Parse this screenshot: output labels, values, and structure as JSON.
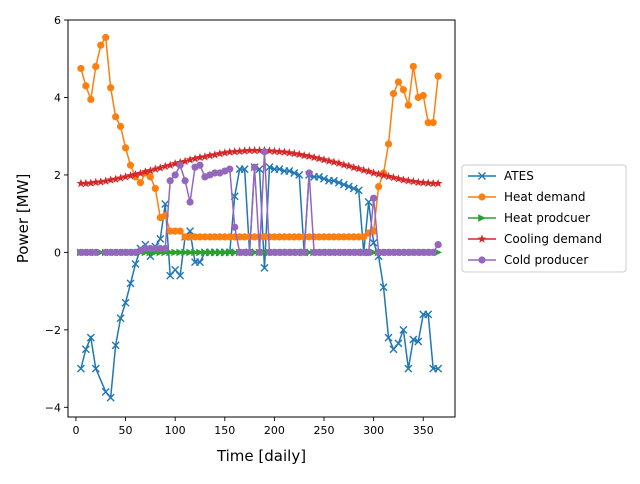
{
  "chart_data": {
    "type": "line",
    "title": "",
    "xlabel": "Time [daily]",
    "ylabel": "Power [MW]",
    "xlim": [
      -8,
      382
    ],
    "ylim": [
      -4.25,
      6.0
    ],
    "xticks": [
      0,
      50,
      100,
      150,
      200,
      250,
      300,
      350
    ],
    "xtick_labels": [
      "0",
      "50",
      "100",
      "150",
      "200",
      "250",
      "300",
      "350"
    ],
    "yticks": [
      -4,
      -2,
      0,
      2,
      4,
      6
    ],
    "ytick_labels": [
      "−4",
      "−2",
      "0",
      "2",
      "4",
      "6"
    ],
    "grid": false,
    "legend_position": "center-right-outside",
    "series": [
      {
        "name": "ATES",
        "color": "#1f77b4",
        "marker": "x",
        "x": [
          5,
          10,
          15,
          20,
          30,
          35,
          40,
          45,
          50,
          55,
          60,
          65,
          70,
          75,
          80,
          85,
          90,
          95,
          100,
          105,
          110,
          115,
          120,
          125,
          130,
          135,
          140,
          145,
          150,
          155,
          160,
          165,
          170,
          175,
          180,
          185,
          190,
          195,
          200,
          205,
          210,
          215,
          220,
          225,
          230,
          235,
          240,
          245,
          250,
          255,
          260,
          265,
          270,
          275,
          280,
          285,
          290,
          295,
          300,
          305,
          310,
          315,
          320,
          325,
          330,
          335,
          340,
          345,
          350,
          355,
          360,
          365
        ],
        "y": [
          -3.0,
          -2.5,
          -2.2,
          -3.0,
          -3.6,
          -3.75,
          -2.4,
          -1.7,
          -1.3,
          -0.8,
          -0.3,
          0.1,
          0.2,
          -0.1,
          0.15,
          0.35,
          1.25,
          -0.6,
          -0.45,
          -0.6,
          0.4,
          0.55,
          -0.25,
          -0.25,
          0.0,
          0.0,
          0.0,
          0.0,
          0.0,
          0.0,
          1.45,
          2.15,
          2.15,
          0.0,
          2.2,
          2.15,
          -0.4,
          2.2,
          2.15,
          2.15,
          2.1,
          2.1,
          2.05,
          2.0,
          0.0,
          2.0,
          1.95,
          1.95,
          1.9,
          1.85,
          1.85,
          1.8,
          1.75,
          1.7,
          1.65,
          1.6,
          0.0,
          1.3,
          0.25,
          -0.1,
          -0.9,
          -2.2,
          -2.5,
          -2.35,
          -2.0,
          -3.0,
          -2.25,
          -2.3,
          -1.6,
          -1.6,
          -3.0,
          -3.0
        ]
      },
      {
        "name": "Heat demand",
        "color": "#ff7f0e",
        "marker": "o",
        "x": [
          5,
          10,
          15,
          20,
          25,
          30,
          35,
          40,
          45,
          50,
          55,
          60,
          65,
          70,
          75,
          80,
          85,
          90,
          95,
          100,
          105,
          110,
          115,
          120,
          125,
          130,
          135,
          140,
          145,
          150,
          155,
          160,
          165,
          170,
          175,
          180,
          185,
          190,
          195,
          200,
          205,
          210,
          215,
          220,
          225,
          230,
          235,
          240,
          245,
          250,
          255,
          260,
          265,
          270,
          275,
          280,
          285,
          290,
          295,
          300,
          305,
          310,
          315,
          320,
          325,
          330,
          335,
          340,
          345,
          350,
          355,
          360,
          365
        ],
        "y": [
          4.75,
          4.3,
          3.95,
          4.8,
          5.35,
          5.55,
          4.25,
          3.5,
          3.25,
          2.7,
          2.25,
          1.95,
          1.8,
          2.05,
          1.95,
          1.65,
          0.9,
          0.95,
          0.55,
          0.55,
          0.55,
          0.4,
          0.4,
          0.4,
          0.4,
          0.4,
          0.4,
          0.4,
          0.4,
          0.4,
          0.4,
          0.4,
          0.4,
          0.4,
          0.4,
          0.4,
          0.4,
          0.4,
          0.4,
          0.4,
          0.4,
          0.4,
          0.4,
          0.4,
          0.4,
          0.4,
          0.4,
          0.4,
          0.4,
          0.4,
          0.4,
          0.4,
          0.4,
          0.4,
          0.4,
          0.4,
          0.4,
          0.4,
          0.5,
          0.55,
          1.7,
          2.05,
          2.8,
          4.1,
          4.4,
          4.2,
          3.8,
          4.8,
          4.0,
          4.05,
          3.35,
          3.35,
          4.55
        ]
      },
      {
        "name": "Heat prodcuer",
        "color": "#2ca02c",
        "marker": ">",
        "x": [
          5,
          10,
          15,
          20,
          25,
          30,
          35,
          40,
          45,
          50,
          55,
          60,
          65,
          70,
          75,
          80,
          85,
          90,
          95,
          100,
          105,
          110,
          115,
          120,
          125,
          130,
          135,
          140,
          145,
          150,
          155,
          160,
          165,
          170,
          175,
          180,
          185,
          190,
          195,
          200,
          205,
          210,
          215,
          220,
          225,
          230,
          235,
          240,
          245,
          250,
          255,
          260,
          265,
          270,
          275,
          280,
          285,
          290,
          295,
          300,
          305,
          310,
          315,
          320,
          325,
          330,
          335,
          340,
          345,
          350,
          355,
          360,
          365
        ],
        "y": [
          0,
          0,
          0,
          0,
          0,
          0,
          0,
          0,
          0,
          0,
          0,
          0,
          0,
          0,
          0,
          0,
          0,
          0,
          0,
          0,
          0,
          0,
          0,
          0,
          0,
          0,
          0,
          0,
          0,
          0,
          0,
          0,
          0,
          0,
          0,
          0,
          0,
          0,
          0,
          0,
          0,
          0,
          0,
          0,
          0,
          0,
          0,
          0,
          0,
          0,
          0,
          0,
          0,
          0,
          0,
          0,
          0,
          0,
          0,
          0,
          0,
          0,
          0,
          0,
          0,
          0,
          0,
          0,
          0,
          0,
          0,
          0,
          0
        ]
      },
      {
        "name": "Cooling demand",
        "color": "#d62728",
        "marker": "*",
        "x": [
          5,
          10,
          15,
          20,
          25,
          30,
          35,
          40,
          45,
          50,
          55,
          60,
          65,
          70,
          75,
          80,
          85,
          90,
          95,
          100,
          105,
          110,
          115,
          120,
          125,
          130,
          135,
          140,
          145,
          150,
          155,
          160,
          165,
          170,
          175,
          180,
          185,
          190,
          195,
          200,
          205,
          210,
          215,
          220,
          225,
          230,
          235,
          240,
          245,
          250,
          255,
          260,
          265,
          270,
          275,
          280,
          285,
          290,
          295,
          300,
          305,
          310,
          315,
          320,
          325,
          330,
          335,
          340,
          345,
          350,
          355,
          360,
          365
        ],
        "y": [
          1.78,
          1.78,
          1.79,
          1.81,
          1.82,
          1.84,
          1.87,
          1.89,
          1.92,
          1.95,
          1.98,
          2.01,
          2.04,
          2.08,
          2.11,
          2.15,
          2.18,
          2.22,
          2.25,
          2.29,
          2.32,
          2.35,
          2.39,
          2.42,
          2.45,
          2.47,
          2.5,
          2.52,
          2.55,
          2.57,
          2.59,
          2.6,
          2.61,
          2.62,
          2.63,
          2.63,
          2.63,
          2.63,
          2.62,
          2.61,
          2.6,
          2.59,
          2.57,
          2.55,
          2.53,
          2.5,
          2.48,
          2.45,
          2.42,
          2.39,
          2.36,
          2.33,
          2.3,
          2.26,
          2.23,
          2.19,
          2.16,
          2.12,
          2.09,
          2.05,
          2.02,
          1.99,
          1.96,
          1.93,
          1.9,
          1.87,
          1.85,
          1.83,
          1.81,
          1.8,
          1.79,
          1.78,
          1.78
        ]
      },
      {
        "name": "Cold producer",
        "color": "#9467bd",
        "marker": "o",
        "x": [
          5,
          10,
          15,
          20,
          30,
          35,
          40,
          45,
          50,
          55,
          60,
          65,
          70,
          75,
          80,
          85,
          90,
          95,
          100,
          105,
          110,
          115,
          120,
          125,
          130,
          135,
          140,
          145,
          150,
          155,
          160,
          165,
          170,
          175,
          180,
          185,
          190,
          195,
          200,
          205,
          210,
          215,
          220,
          225,
          230,
          235,
          240,
          245,
          250,
          255,
          260,
          265,
          270,
          275,
          280,
          285,
          290,
          295,
          300,
          305,
          310,
          315,
          320,
          325,
          330,
          335,
          340,
          345,
          350,
          355,
          360,
          365
        ],
        "y": [
          0,
          0,
          0,
          0,
          0,
          0,
          0,
          0,
          0,
          0,
          0,
          0.05,
          0.1,
          0.1,
          0.1,
          0.1,
          0.1,
          1.85,
          2.0,
          2.25,
          1.85,
          1.3,
          2.2,
          2.25,
          1.95,
          2.0,
          2.05,
          2.05,
          2.1,
          2.15,
          0.65,
          0.0,
          0.0,
          0.0,
          2.2,
          0.0,
          2.6,
          0.0,
          0.0,
          0.0,
          0.0,
          0.0,
          0.0,
          0.0,
          0.0,
          2.05,
          0.0,
          0.0,
          0.0,
          0.0,
          0.0,
          0.0,
          0.0,
          0.0,
          0.0,
          0.0,
          0.0,
          0.0,
          1.4,
          0.0,
          0.0,
          0.0,
          0.0,
          0.0,
          0.0,
          0.0,
          0.0,
          0.0,
          0.0,
          0.0,
          0.0,
          0.2
        ]
      }
    ]
  }
}
